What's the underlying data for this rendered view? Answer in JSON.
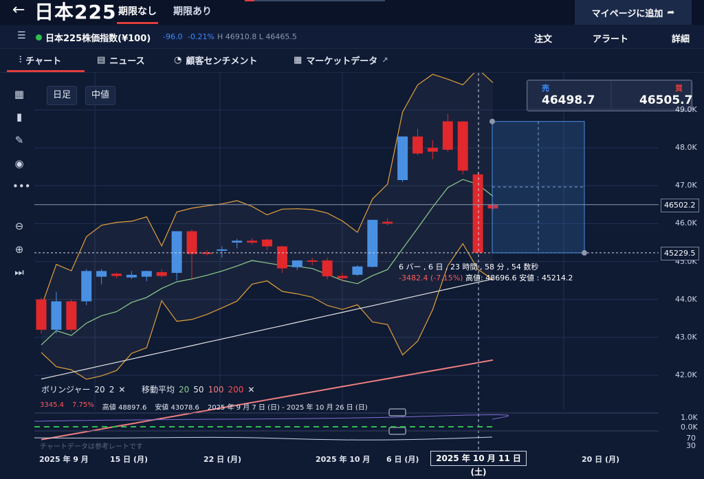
{
  "header": {
    "back_icon": "arrow-left-icon",
    "title": "日本225",
    "tabs": [
      {
        "label": "期限なし",
        "active": true
      },
      {
        "label": "期限あり",
        "active": false
      }
    ],
    "add_button": "マイページに追加"
  },
  "instrument": {
    "name": "日本225株価指数(¥100)",
    "change": "-96.0",
    "change_pct": "-0.21%",
    "high": "H 46910.8",
    "low": "L 46465.5",
    "menu": [
      "注文",
      "アラート",
      "詳細"
    ]
  },
  "subtabs": [
    {
      "label": "チャート",
      "icon": "candlestick-icon",
      "active": true
    },
    {
      "label": "ニュース",
      "icon": "news-icon"
    },
    {
      "label": "顧客センチメント",
      "icon": "sentiment-icon"
    },
    {
      "label": "マーケットデータ",
      "icon": "clipboard-icon"
    }
  ],
  "chart_controls": {
    "timeframe": "日足",
    "price_type": "中値"
  },
  "quote": {
    "sell_label": "売",
    "sell_value": "46498.7",
    "buy_label": "買",
    "buy_value": "46505.7"
  },
  "yaxis": {
    "ticks": [
      "49.0K",
      "48.0K",
      "47.0K",
      "46.0K",
      "45.0K",
      "44.0K",
      "43.0K",
      "42.0K"
    ],
    "current_price": "46502.2",
    "measure_price": "45229.5"
  },
  "measure_tooltip": {
    "line1": "6 バー , 6 日 , 23 時間 , 58 分 , 54 数秒",
    "change": "-3482.4 (-7.15%)",
    "hl": "高値: 48696.6 安値 : 45214.2"
  },
  "legend": {
    "bb_label": "ボリンジャー",
    "bb_params": [
      "20",
      "2"
    ],
    "ma_label": "移動平均",
    "ma_params": [
      "20",
      "50",
      "100",
      "200"
    ],
    "ma_colors": [
      "#8fd18f",
      "#e6e6e6",
      "#f08080",
      "#ff4d4d"
    ]
  },
  "stats": {
    "v1": "3345.4",
    "v2": "7.75%",
    "high": "高値 48897.6",
    "low": "安値 43078.6",
    "range": "2025 年 9 月 7 日 (日) - 2025 年 10 月 26 日 (日)"
  },
  "sub_panels": {
    "vol_ticks": [
      "1.0K",
      "0.0K"
    ],
    "osc_ticks": [
      "70",
      "30"
    ]
  },
  "xaxis": {
    "labels": [
      "2025 年 9 月",
      "15 日 (月)",
      "22 日 (月)",
      "2025 年 10 月",
      "6 日 (月)",
      "20 日 (月)"
    ],
    "selected": "2025 年 10 月 11 日 (土)"
  },
  "watermark": "チャートデータは参考レートです",
  "chart_data": {
    "type": "candlestick",
    "candles": [
      {
        "o": 44000,
        "h": 44050,
        "l": 43100,
        "c": 43200
      },
      {
        "o": 43200,
        "h": 44200,
        "l": 43100,
        "c": 43950
      },
      {
        "o": 43950,
        "h": 44000,
        "l": 43150,
        "c": 43200
      },
      {
        "o": 43950,
        "h": 44800,
        "l": 43850,
        "c": 44750
      },
      {
        "o": 44600,
        "h": 44800,
        "l": 44400,
        "c": 44750
      },
      {
        "o": 44680,
        "h": 44700,
        "l": 44560,
        "c": 44620
      },
      {
        "o": 44580,
        "h": 44750,
        "l": 44540,
        "c": 44650
      },
      {
        "o": 44600,
        "h": 44760,
        "l": 44480,
        "c": 44750
      },
      {
        "o": 44720,
        "h": 44800,
        "l": 44580,
        "c": 44620
      },
      {
        "o": 44700,
        "h": 45800,
        "l": 44500,
        "c": 45800
      },
      {
        "o": 45800,
        "h": 45850,
        "l": 44500,
        "c": 45200
      },
      {
        "o": 45240,
        "h": 45300,
        "l": 45160,
        "c": 45200
      },
      {
        "o": 45300,
        "h": 45400,
        "l": 45100,
        "c": 45320
      },
      {
        "o": 45500,
        "h": 45600,
        "l": 45350,
        "c": 45550
      },
      {
        "o": 45550,
        "h": 45620,
        "l": 45450,
        "c": 45500
      },
      {
        "o": 45580,
        "h": 45600,
        "l": 45300,
        "c": 45400
      },
      {
        "o": 45400,
        "h": 45420,
        "l": 44700,
        "c": 44820
      },
      {
        "o": 44850,
        "h": 45000,
        "l": 44780,
        "c": 45030
      },
      {
        "o": 45030,
        "h": 45100,
        "l": 44900,
        "c": 45000
      },
      {
        "o": 45030,
        "h": 45100,
        "l": 44530,
        "c": 44610
      },
      {
        "o": 44620,
        "h": 44700,
        "l": 44480,
        "c": 44560
      },
      {
        "o": 44650,
        "h": 44900,
        "l": 44620,
        "c": 44870
      },
      {
        "o": 44860,
        "h": 46100,
        "l": 44840,
        "c": 46100
      },
      {
        "o": 46050,
        "h": 46140,
        "l": 45950,
        "c": 46000
      },
      {
        "o": 47150,
        "h": 48300,
        "l": 47100,
        "c": 48300
      },
      {
        "o": 48300,
        "h": 48500,
        "l": 47800,
        "c": 47850
      },
      {
        "o": 48000,
        "h": 48200,
        "l": 47700,
        "c": 47900
      },
      {
        "o": 48700,
        "h": 48897.6,
        "l": 47900,
        "c": 47950
      },
      {
        "o": 48696.6,
        "h": 48700,
        "l": 47300,
        "c": 47400
      },
      {
        "o": 47300,
        "h": 47350,
        "l": 45214.2,
        "c": 45229.5
      },
      {
        "o": 46502.2,
        "h": 46550,
        "l": 46350,
        "c": 46400
      }
    ],
    "bollinger": {
      "period": 20,
      "stddev": 2
    },
    "moving_averages": [
      20,
      50,
      100,
      200
    ],
    "ylim": [
      41500,
      49300
    ]
  }
}
